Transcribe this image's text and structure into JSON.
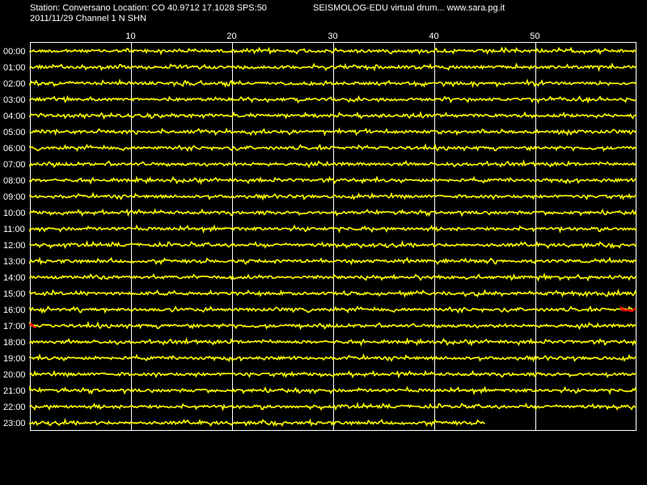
{
  "header": {
    "station_line": "Station: Conversano Location: CO 40.9712 17.1028 SPS:50",
    "title": "SEISMOLOG-EDU virtual drum... www.sara.pg.it",
    "date_line": "2011/11/29  Channel 1 N SHN"
  },
  "colors": {
    "background": "#000000",
    "trace": "#ffff00",
    "event": "#ff0000",
    "grid": "#ffffff",
    "text": "#ffffff"
  },
  "chart_data": {
    "type": "line",
    "title": "",
    "xlabel": "",
    "ylabel": "",
    "xlim": [
      0,
      60
    ],
    "x_ticks": [
      10,
      20,
      30,
      40,
      50
    ],
    "grid": true,
    "rows": [
      "00:00",
      "01:00",
      "02:00",
      "03:00",
      "04:00",
      "05:00",
      "06:00",
      "07:00",
      "08:00",
      "09:00",
      "10:00",
      "11:00",
      "12:00",
      "13:00",
      "14:00",
      "15:00",
      "16:00",
      "17:00",
      "18:00",
      "19:00",
      "20:00",
      "21:00",
      "22:00",
      "23:00"
    ],
    "last_row_end_minute": 45,
    "events": [
      {
        "row": "16:00",
        "start_minute": 58.5,
        "end_minute": 60
      },
      {
        "row": "17:00",
        "start_minute": 0,
        "end_minute": 0.6
      }
    ]
  }
}
